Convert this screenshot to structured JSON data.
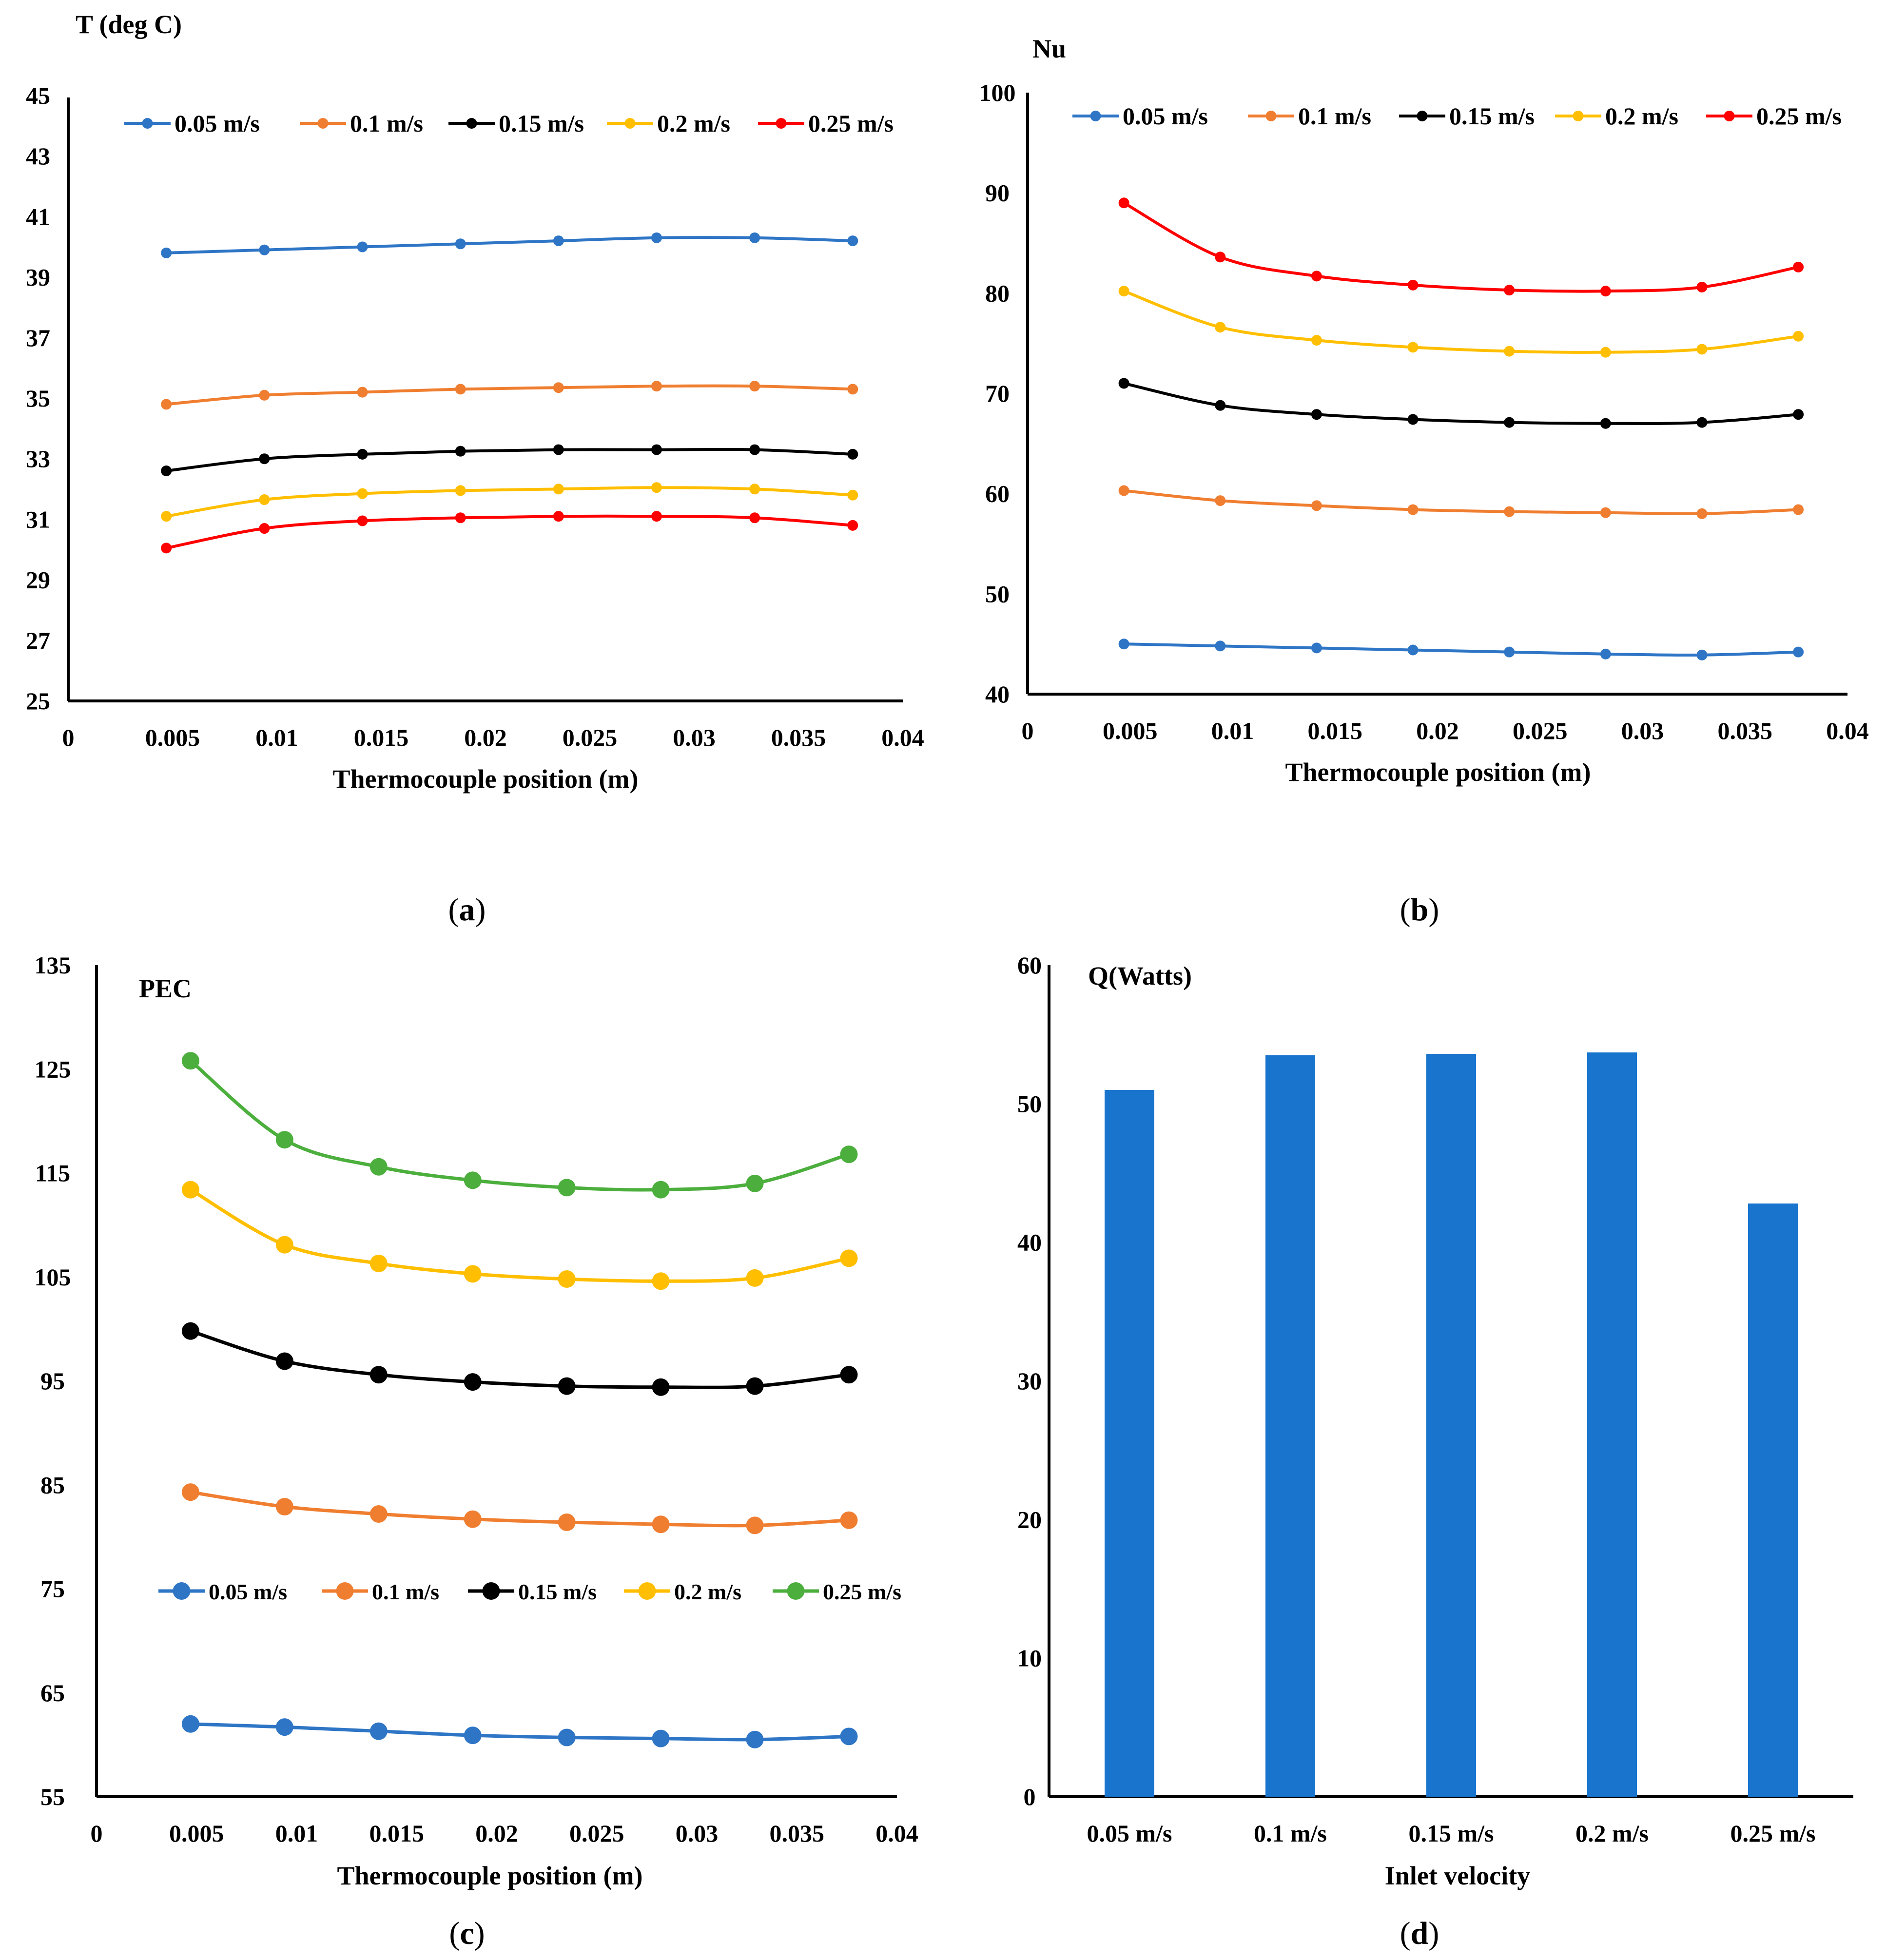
{
  "chart_data": [
    {
      "panel": "(a)",
      "panel_label": "a",
      "type": "line",
      "title": "",
      "ylabel": "T (deg C)",
      "xlabel": "Thermocouple position (m)",
      "xlim": [
        0,
        0.04
      ],
      "ylim": [
        25,
        45
      ],
      "x_ticks": [
        "0",
        "0.005",
        "0.01",
        "0.015",
        "0.02",
        "0.025",
        "0.03",
        "0.035",
        "0.04"
      ],
      "y_ticks": [
        "25",
        "27",
        "29",
        "31",
        "33",
        "35",
        "37",
        "39",
        "41",
        "43",
        "45"
      ],
      "legend_position": "top",
      "grid": false,
      "x": [
        0.0047,
        0.0094,
        0.0141,
        0.0188,
        0.0235,
        0.0282,
        0.0329,
        0.0376
      ],
      "series": [
        {
          "name": "0.05 m/s",
          "color": "#2E75C6",
          "values": [
            39.8,
            39.9,
            40.0,
            40.1,
            40.2,
            40.3,
            40.3,
            40.2
          ]
        },
        {
          "name": "0.1 m/s",
          "color": "#F07E30",
          "values": [
            34.8,
            35.1,
            35.2,
            35.3,
            35.35,
            35.4,
            35.4,
            35.3
          ]
        },
        {
          "name": "0.15 m/s",
          "color": "#000000",
          "values": [
            32.6,
            33.0,
            33.15,
            33.25,
            33.3,
            33.3,
            33.3,
            33.15
          ]
        },
        {
          "name": "0.2 m/s",
          "color": "#FFBF00",
          "values": [
            31.1,
            31.65,
            31.85,
            31.95,
            32.0,
            32.05,
            32.0,
            31.8
          ]
        },
        {
          "name": "0.25 m/s",
          "color": "#FF0000",
          "values": [
            30.05,
            30.7,
            30.95,
            31.05,
            31.1,
            31.1,
            31.05,
            30.8
          ]
        }
      ]
    },
    {
      "panel": "(b)",
      "panel_label": "b",
      "type": "line",
      "title": "",
      "ylabel": "Nu",
      "xlabel": "Thermocouple position (m)",
      "xlim": [
        0,
        0.04
      ],
      "ylim": [
        40,
        100
      ],
      "x_ticks": [
        "0",
        "0.005",
        "0.01",
        "0.015",
        "0.02",
        "0.025",
        "0.03",
        "0.035",
        "0.04"
      ],
      "y_ticks": [
        "40",
        "50",
        "60",
        "70",
        "80",
        "90",
        "100"
      ],
      "legend_position": "top",
      "grid": false,
      "x": [
        0.0047,
        0.0094,
        0.0141,
        0.0188,
        0.0235,
        0.0282,
        0.0329,
        0.0376
      ],
      "series": [
        {
          "name": "0.05 m/s",
          "color": "#2E75C6",
          "values": [
            45.0,
            44.8,
            44.6,
            44.4,
            44.2,
            44.0,
            43.9,
            44.2
          ]
        },
        {
          "name": "0.1 m/s",
          "color": "#F07E30",
          "values": [
            60.3,
            59.3,
            58.8,
            58.4,
            58.2,
            58.1,
            58.0,
            58.4
          ]
        },
        {
          "name": "0.15 m/s",
          "color": "#000000",
          "values": [
            71.0,
            68.8,
            67.9,
            67.4,
            67.1,
            67.0,
            67.1,
            67.9
          ]
        },
        {
          "name": "0.2 m/s",
          "color": "#FFBF00",
          "values": [
            80.2,
            76.6,
            75.3,
            74.6,
            74.2,
            74.1,
            74.4,
            75.7
          ]
        },
        {
          "name": "0.25 m/s",
          "color": "#FF0000",
          "values": [
            89.0,
            83.6,
            81.7,
            80.8,
            80.3,
            80.2,
            80.6,
            82.6
          ]
        }
      ]
    },
    {
      "panel": "(c)",
      "panel_label": "c",
      "type": "line",
      "title": "",
      "ylabel": "PEC",
      "xlabel": "Thermocouple position (m)",
      "xlim": [
        0,
        0.04
      ],
      "ylim": [
        55,
        135
      ],
      "x_ticks": [
        "0",
        "0.005",
        "0.01",
        "0.015",
        "0.02",
        "0.025",
        "0.03",
        "0.035",
        "0.04"
      ],
      "y_ticks": [
        "55",
        "65",
        "75",
        "85",
        "95",
        "105",
        "115",
        "125",
        "135"
      ],
      "legend_position": "lower-middle",
      "grid": false,
      "x": [
        0.0047,
        0.0094,
        0.0141,
        0.0188,
        0.0235,
        0.0282,
        0.0329,
        0.0376
      ],
      "series": [
        {
          "name": "0.05 m/s",
          "color": "#2E75C6",
          "values": [
            62.0,
            61.7,
            61.3,
            60.9,
            60.7,
            60.6,
            60.5,
            60.8
          ]
        },
        {
          "name": "0.1 m/s",
          "color": "#F07E30",
          "values": [
            84.3,
            82.9,
            82.2,
            81.7,
            81.4,
            81.2,
            81.1,
            81.6
          ]
        },
        {
          "name": "0.15 m/s",
          "color": "#000000",
          "values": [
            99.8,
            96.9,
            95.6,
            94.9,
            94.5,
            94.4,
            94.5,
            95.6
          ]
        },
        {
          "name": "0.2 m/s",
          "color": "#FFBF00",
          "values": [
            113.4,
            108.1,
            106.3,
            105.3,
            104.8,
            104.6,
            104.9,
            106.8
          ]
        },
        {
          "name": "0.25 m/s",
          "color": "#4CAF3D",
          "values": [
            125.8,
            118.2,
            115.6,
            114.3,
            113.6,
            113.4,
            114.0,
            116.8
          ]
        }
      ]
    },
    {
      "panel": "(d)",
      "panel_label": "d",
      "type": "bar",
      "title": "",
      "ylabel": "Q(Watts)",
      "xlabel": "Inlet velocity",
      "ylim": [
        0,
        60
      ],
      "y_ticks": [
        "0",
        "10",
        "20",
        "30",
        "40",
        "50",
        "60"
      ],
      "grid": false,
      "categories": [
        "0.05 m/s",
        "0.1 m/s",
        "0.15 m/s",
        "0.2 m/s",
        "0.25 m/s"
      ],
      "bar_color": "#1874CD",
      "values": [
        51.0,
        53.5,
        53.6,
        53.7,
        42.8
      ]
    }
  ]
}
